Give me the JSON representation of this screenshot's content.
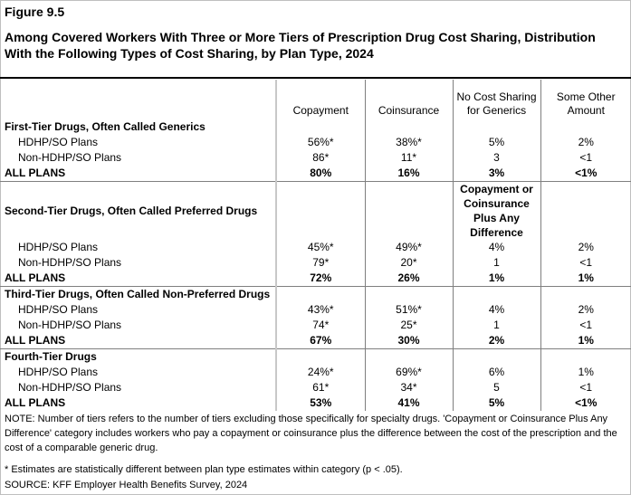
{
  "figure_label": "Figure 9.5",
  "title": "Among Covered Workers With Three or More Tiers of Prescription Drug Cost Sharing, Distribution With the Following Types of Cost Sharing, by Plan Type, 2024",
  "columns": [
    "Copayment",
    "Coinsurance",
    "No Cost Sharing for Generics",
    "Some Other Amount"
  ],
  "sections": [
    {
      "title": "First-Tier Drugs, Often Called Generics",
      "col3_header": "",
      "rows": [
        {
          "label": "HDHP/SO Plans",
          "values": [
            "56%*",
            "38%*",
            "5%",
            "2%"
          ]
        },
        {
          "label": "Non-HDHP/SO Plans",
          "values": [
            "86*",
            "11*",
            "3",
            "<1"
          ]
        },
        {
          "label": "ALL PLANS",
          "values": [
            "80%",
            "16%",
            "3%",
            "<1%"
          ]
        }
      ]
    },
    {
      "title": "Second-Tier Drugs, Often Called Preferred Drugs",
      "col3_header": "Copayment or Coinsurance Plus Any Difference",
      "rows": [
        {
          "label": "HDHP/SO Plans",
          "values": [
            "45%*",
            "49%*",
            "4%",
            "2%"
          ]
        },
        {
          "label": "Non-HDHP/SO Plans",
          "values": [
            "79*",
            "20*",
            "1",
            "<1"
          ]
        },
        {
          "label": "ALL PLANS",
          "values": [
            "72%",
            "26%",
            "1%",
            "1%"
          ]
        }
      ]
    },
    {
      "title": "Third-Tier Drugs, Often Called Non-Preferred Drugs",
      "col3_header": "",
      "rows": [
        {
          "label": "HDHP/SO Plans",
          "values": [
            "43%*",
            "51%*",
            "4%",
            "2%"
          ]
        },
        {
          "label": "Non-HDHP/SO Plans",
          "values": [
            "74*",
            "25*",
            "1",
            "<1"
          ]
        },
        {
          "label": "ALL PLANS",
          "values": [
            "67%",
            "30%",
            "2%",
            "1%"
          ]
        }
      ]
    },
    {
      "title": "Fourth-Tier Drugs",
      "col3_header": "",
      "rows": [
        {
          "label": "HDHP/SO Plans",
          "values": [
            "24%*",
            "69%*",
            "6%",
            "1%"
          ]
        },
        {
          "label": "Non-HDHP/SO Plans",
          "values": [
            "61*",
            "34*",
            "5",
            "<1"
          ]
        },
        {
          "label": "ALL PLANS",
          "values": [
            "53%",
            "41%",
            "5%",
            "<1%"
          ]
        }
      ]
    }
  ],
  "note": "NOTE: Number of tiers refers to the number of tiers excluding those specifically for specialty drugs. 'Copayment or Coinsurance Plus Any Difference' category includes workers who pay a copayment or coinsurance plus the difference between the cost of the prescription and the cost of a comparable generic drug.",
  "footnote": "* Estimates are statistically different between plan type estimates within category (p < .05).",
  "source": "SOURCE: KFF Employer Health Benefits Survey, 2024"
}
